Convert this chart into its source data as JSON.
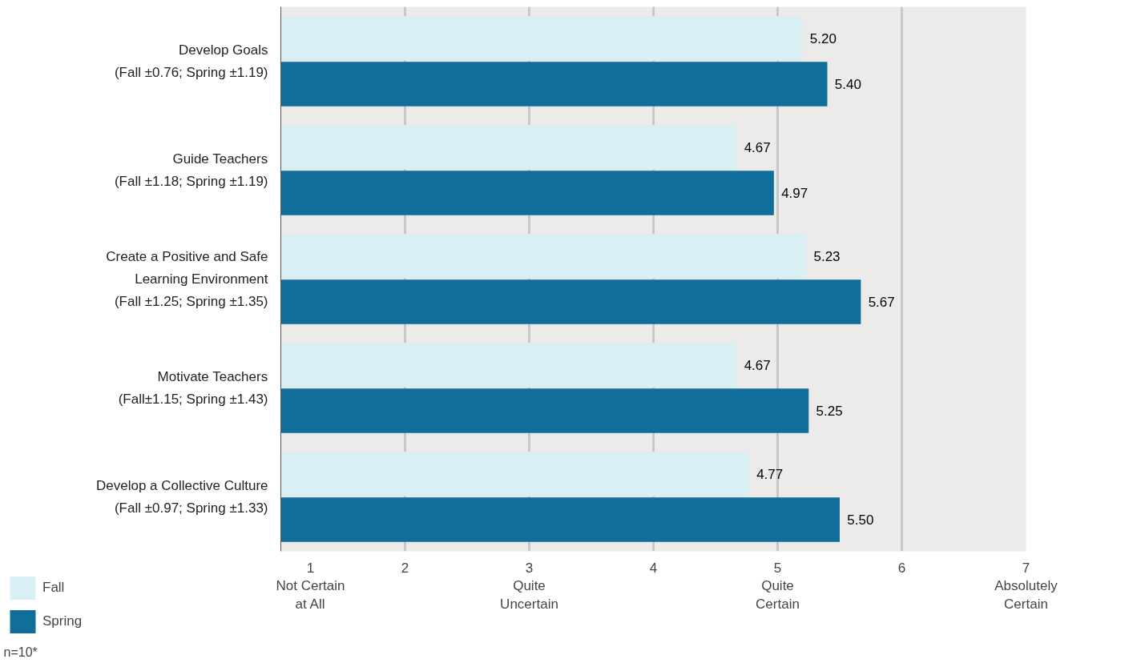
{
  "chart_data": {
    "type": "bar",
    "orientation": "horizontal",
    "categories": [
      "Develop Goals\n(Fall ±0.76; Spring ±1.19)",
      "Guide Teachers\n(Fall ±1.18; Spring ±1.19)",
      "Create a Positive and Safe\nLearning Environment\n(Fall ±1.25; Spring ±1.35)",
      "Motivate Teachers\n(Fall±1.15; Spring ±1.43)",
      "Develop a Collective Culture\n(Fall ±0.97; Spring ±1.33)"
    ],
    "series": [
      {
        "name": "Fall",
        "color": "#d9eff4",
        "values": [
          5.2,
          4.67,
          5.23,
          4.67,
          4.77
        ],
        "value_labels": [
          "5.20",
          "4.67",
          "5.23",
          "4.67",
          "4.77"
        ]
      },
      {
        "name": "Spring",
        "color": "#116d9a",
        "values": [
          5.4,
          4.97,
          5.67,
          5.25,
          5.5
        ],
        "value_labels": [
          "5.40",
          "4.97",
          "5.67",
          "5.25",
          "5.50"
        ]
      }
    ],
    "xlim": [
      1,
      7
    ],
    "xticks": [
      {
        "value": 1,
        "label": "1\nNot Certain\nat All"
      },
      2,
      {
        "value": 3,
        "label": "3\nQuite\nUncertain"
      },
      4,
      {
        "value": 5,
        "label": "5\nQuite\nCertain"
      },
      6,
      {
        "value": 7,
        "label": "7\nAbsolutely\nCertain"
      }
    ],
    "grid": "x",
    "legend": "bottom left",
    "annotations": [
      "n=10*"
    ]
  }
}
